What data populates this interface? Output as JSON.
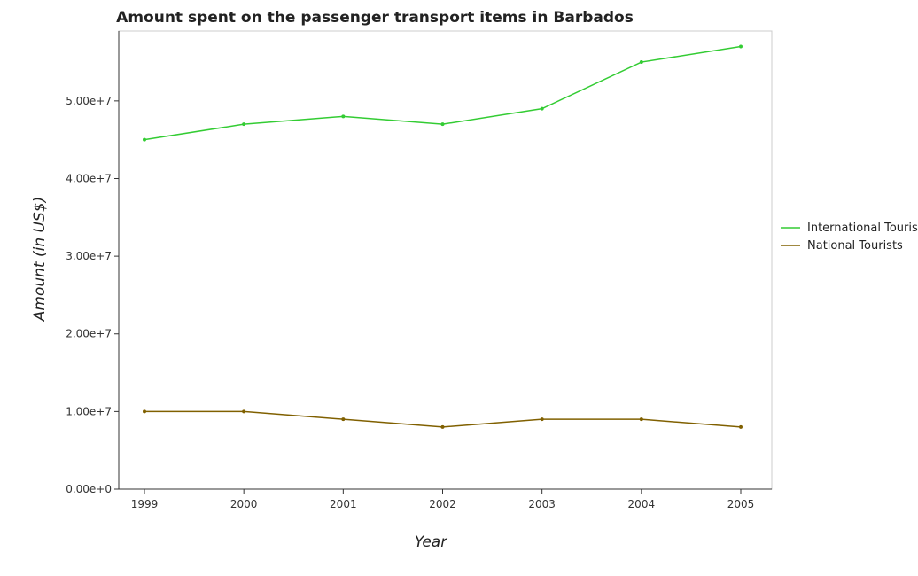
{
  "chart_data": {
    "type": "line",
    "title": "Amount spent on the passenger transport items in Barbados",
    "xlabel": "Year",
    "ylabel": "Amount (in US$)",
    "categories": [
      "1999",
      "2000",
      "2001",
      "2002",
      "2003",
      "2004",
      "2005"
    ],
    "series": [
      {
        "name": "International Tourists",
        "color": "#33cc33",
        "values": [
          45000000,
          47000000,
          48000000,
          47000000,
          49000000,
          55000000,
          57000000
        ]
      },
      {
        "name": "National Tourists",
        "color": "#806000",
        "values": [
          10000000,
          10000000,
          9000000,
          8000000,
          9000000,
          9000000,
          8000000
        ]
      }
    ],
    "ylim": [
      0,
      59000000
    ],
    "yticks": [
      0,
      10000000,
      20000000,
      30000000,
      40000000,
      50000000
    ],
    "ytick_labels": [
      "0.00e+0",
      "1.00e+7",
      "2.00e+7",
      "3.00e+7",
      "4.00e+7",
      "5.00e+7"
    ],
    "grid": false,
    "legend_position": "right"
  }
}
